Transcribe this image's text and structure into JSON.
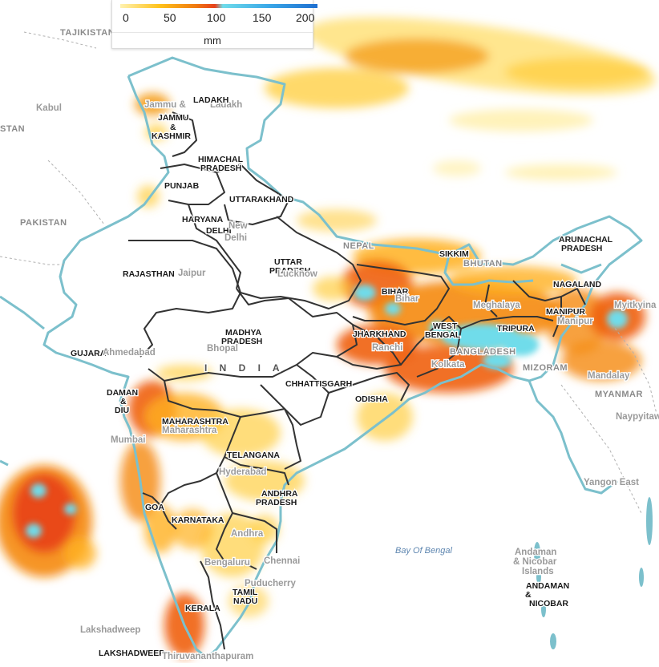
{
  "legend": {
    "ticks": [
      "0",
      "50",
      "100",
      "150",
      "200"
    ],
    "unit": "mm",
    "colors": [
      "#fff2b0",
      "#ffc21a",
      "#f07b10",
      "#e8401a",
      "#6fdcea",
      "#3aa8e8",
      "#1e6fd0"
    ]
  },
  "map": {
    "border_color": "#7cc0cc",
    "state_border_color": "#333333",
    "country_label": "I N D I A",
    "states": [
      "LADAKH",
      "JAMMU",
      "&",
      "KASHMIR",
      "HIMACHAL",
      "PRADESH",
      "PUNJAB",
      "UTTARAKHAND",
      "HARYANA",
      "DELHI",
      "RAJASTHAN",
      "UTTAR",
      "PRADESH",
      "BIHAR",
      "SIKKIM",
      "ARUNACHAL",
      "PRADESH",
      "NAGALAND",
      "MANIPUR",
      "GUJARAT",
      "MADHYA",
      "PRADESH",
      "JHARKHAND",
      "WEST",
      "BENGAL",
      "TRIPURA",
      "CHHATTISGARH",
      "ODISHA",
      "DAMAN",
      "&",
      "DIU",
      "MAHARASHTRA",
      "TELANGANA",
      "ANDHRA",
      "PRADESH",
      "GOA",
      "KARNATAKA",
      "TAMIL",
      "NADU",
      "KERALA",
      "LAKSHADWEEP",
      "ANDAMAN",
      "&",
      "NICOBAR"
    ],
    "countries": [
      "TAJIKISTAN",
      "PAKISTAN",
      "STAN",
      "NEPAL",
      "BHUTAN",
      "BANGLADESH",
      "MYANMAR",
      "MIZORAM"
    ],
    "cities": [
      "Kabul",
      "New",
      "Delhi",
      "Jaipur",
      "Lucknow",
      "Bhopal",
      "Ahmedabad",
      "Ranchi",
      "Kolkata",
      "Mumbai",
      "Hyderabad",
      "Bengaluru",
      "Chennai",
      "Puducherry",
      "Thiruvananthapuram",
      "Lakshadweep",
      "Myitkyina",
      "Mandalay",
      "Naypyitaw",
      "Yangon East",
      "Andaman",
      "& Nicobar",
      "Islands",
      "Ladakh",
      "Jammu &",
      "Meghalaya",
      "Maharashtra",
      "Andhra",
      "Bihar",
      "Jharkhand",
      "West",
      "Bengal",
      "Tripura",
      "Manipur",
      "Odisha",
      "Goa"
    ],
    "sea": "Bay Of Bengal"
  }
}
